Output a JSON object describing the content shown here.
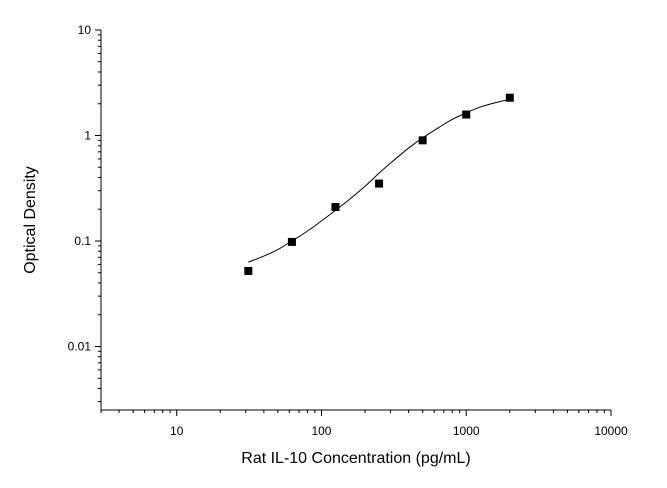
{
  "chart_data": {
    "type": "scatter",
    "title": "",
    "xlabel": "Rat IL-10 Concentration (pg/mL)",
    "ylabel": "Optical Density",
    "x_scale": "log",
    "y_scale": "log",
    "xlim": [
      3,
      10000
    ],
    "ylim": [
      0.0025,
      10
    ],
    "x_tick_labels": [
      "10",
      "100",
      "1000",
      "10000"
    ],
    "y_tick_labels": [
      "0.01",
      "0.1",
      "1",
      "10"
    ],
    "grid": false,
    "series": [
      {
        "marker": "square",
        "x": [
          31.25,
          62.5,
          125,
          250,
          500,
          1000,
          2000
        ],
        "y": [
          0.052,
          0.098,
          0.21,
          0.35,
          0.9,
          1.58,
          2.28
        ]
      }
    ],
    "fit_curve": {
      "x": [
        31.25,
        40,
        50,
        62.5,
        80,
        100,
        125,
        160,
        200,
        250,
        320,
        400,
        500,
        640,
        800,
        1000,
        1250,
        1600,
        2000
      ],
      "y": [
        0.063,
        0.072,
        0.083,
        0.1,
        0.124,
        0.155,
        0.195,
        0.255,
        0.33,
        0.44,
        0.59,
        0.76,
        0.95,
        1.18,
        1.42,
        1.64,
        1.86,
        2.05,
        2.2
      ]
    },
    "colors": {
      "axis": "#000000",
      "marker": "#000000",
      "curve": "#000000"
    }
  }
}
